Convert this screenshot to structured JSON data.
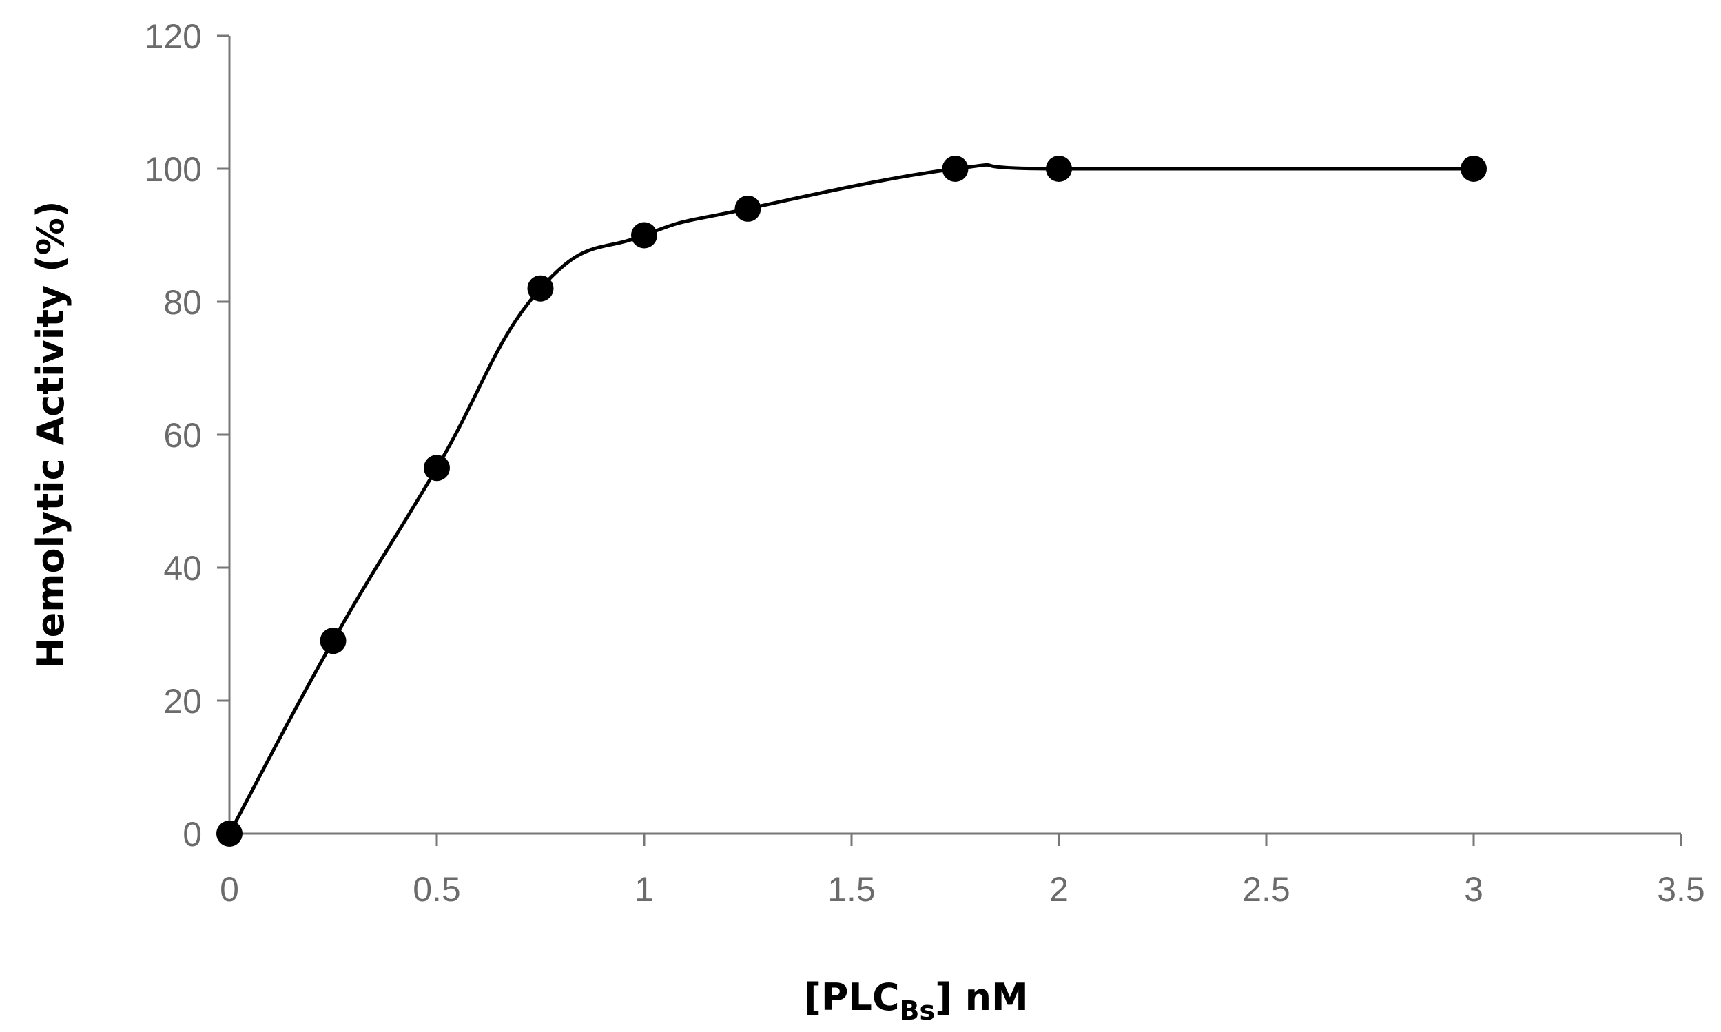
{
  "chart_data": {
    "type": "scatter",
    "title": "",
    "xlabel": {
      "prefix": "[PLC",
      "subscript": "Bs",
      "suffix": "] nM"
    },
    "ylabel": "Hemolytic Activity (%)",
    "xlim": [
      0,
      3.5
    ],
    "ylim": [
      0,
      120
    ],
    "x_ticks": [
      0,
      0.5,
      1,
      1.5,
      2,
      2.5,
      3,
      3.5
    ],
    "x_tick_labels": [
      "0",
      "0.5",
      "1",
      "1.5",
      "2",
      "2.5",
      "3",
      "3.5"
    ],
    "y_ticks": [
      0,
      20,
      40,
      60,
      80,
      100,
      120
    ],
    "y_tick_labels": [
      "0",
      "20",
      "40",
      "60",
      "80",
      "100",
      "120"
    ],
    "grid": false,
    "legend": "none",
    "series": [
      {
        "x": [
          0,
          0.25,
          0.5,
          0.75,
          1,
          1.25,
          1.75,
          2,
          3
        ],
        "y": [
          0,
          29,
          55,
          82,
          90,
          94,
          100,
          100,
          100
        ],
        "line": "smoothed",
        "marker": "circle",
        "color": "#000000"
      }
    ],
    "colors": {
      "axis": "#777777",
      "tick_text": "#6b6b6b",
      "title_text": "#000000",
      "series": "#000000"
    }
  }
}
